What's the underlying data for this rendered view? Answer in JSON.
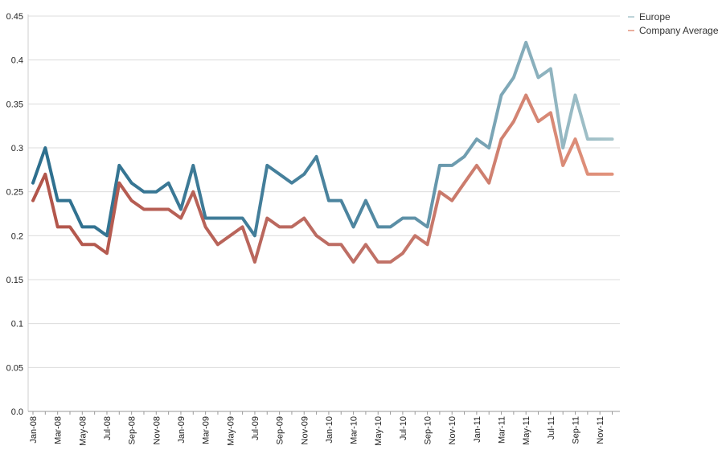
{
  "chart_data": {
    "type": "line",
    "ylim": [
      0,
      0.45
    ],
    "yticks": [
      "0.0",
      "0.05",
      "0.1",
      "0.15",
      "0.2",
      "0.25",
      "0.3",
      "0.35",
      "0.4",
      "0.45"
    ],
    "x_tick_labels": [
      "Jan-08",
      "Mar-08",
      "May-08",
      "Jul-08",
      "Sep-08",
      "Nov-08",
      "Jan-09",
      "Mar-09",
      "May-09",
      "Jul-09",
      "Sep-09",
      "Nov-09",
      "Jan-10",
      "Mar-10",
      "May-10",
      "Jul-10",
      "Sep-10",
      "Nov-10",
      "Jan-11",
      "Mar-11",
      "May-11",
      "Jul-11",
      "Sep-11",
      "Nov-11"
    ],
    "x": [
      "Jan-08",
      "Feb-08",
      "Mar-08",
      "Apr-08",
      "May-08",
      "Jun-08",
      "Jul-08",
      "Aug-08",
      "Sep-08",
      "Oct-08",
      "Nov-08",
      "Dec-08",
      "Jan-09",
      "Feb-09",
      "Mar-09",
      "Apr-09",
      "May-09",
      "Jun-09",
      "Jul-09",
      "Aug-09",
      "Sep-09",
      "Oct-09",
      "Nov-09",
      "Dec-09",
      "Jan-10",
      "Feb-10",
      "Mar-10",
      "Apr-10",
      "May-10",
      "Jun-10",
      "Jul-10",
      "Aug-10",
      "Sep-10",
      "Oct-10",
      "Nov-10",
      "Dec-10",
      "Jan-11",
      "Feb-11",
      "Mar-11",
      "Apr-11",
      "May-11",
      "Jun-11",
      "Jul-11",
      "Aug-11",
      "Sep-11",
      "Oct-11",
      "Nov-11",
      "Dec-11"
    ],
    "grid": true,
    "legend_position": "top-right",
    "series": [
      {
        "name": "Europe",
        "color_start": "#2d6f8e",
        "color_end": "#a9c6cc",
        "values": [
          0.26,
          0.3,
          0.24,
          0.24,
          0.21,
          0.21,
          0.2,
          0.28,
          0.26,
          0.25,
          0.25,
          0.26,
          0.23,
          0.28,
          0.22,
          0.22,
          0.22,
          0.22,
          0.2,
          0.28,
          0.27,
          0.26,
          0.27,
          0.29,
          0.24,
          0.24,
          0.21,
          0.24,
          0.21,
          0.21,
          0.22,
          0.22,
          0.21,
          0.28,
          0.28,
          0.29,
          0.31,
          0.3,
          0.36,
          0.38,
          0.42,
          0.38,
          0.39,
          0.3,
          0.36,
          0.31,
          0.31,
          0.31
        ]
      },
      {
        "name": "Company Average",
        "color_start": "#b2554a",
        "color_end": "#e2937c",
        "values": [
          0.24,
          0.27,
          0.21,
          0.21,
          0.19,
          0.19,
          0.18,
          0.26,
          0.24,
          0.23,
          0.23,
          0.23,
          0.22,
          0.25,
          0.21,
          0.19,
          0.2,
          0.21,
          0.17,
          0.22,
          0.21,
          0.21,
          0.22,
          0.2,
          0.19,
          0.19,
          0.17,
          0.19,
          0.17,
          0.17,
          0.18,
          0.2,
          0.19,
          0.25,
          0.24,
          0.26,
          0.28,
          0.26,
          0.31,
          0.33,
          0.36,
          0.33,
          0.34,
          0.28,
          0.31,
          0.27,
          0.27,
          0.27
        ]
      }
    ]
  }
}
